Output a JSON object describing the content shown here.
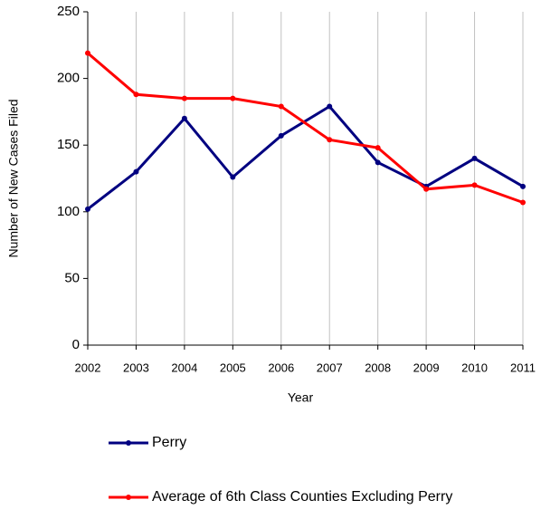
{
  "chart_data": {
    "type": "line",
    "x_label": "Year",
    "y_label": "Number of New Cases Filed",
    "categories": [
      "2002",
      "2003",
      "2004",
      "2005",
      "2006",
      "2007",
      "2008",
      "2009",
      "2010",
      "2011"
    ],
    "series": [
      {
        "name": "Perry",
        "color": "#000080",
        "values": [
          102,
          130,
          170,
          126,
          157,
          179,
          137,
          119,
          140,
          119
        ]
      },
      {
        "name": "Average of 6th Class Counties Excluding Perry",
        "color": "#ff0000",
        "values": [
          219,
          188,
          185,
          185,
          179,
          154,
          148,
          117,
          120,
          107
        ]
      }
    ],
    "ylim": [
      0,
      250
    ],
    "yticks": [
      0,
      50,
      100,
      150,
      200,
      250
    ],
    "grid": "x"
  }
}
